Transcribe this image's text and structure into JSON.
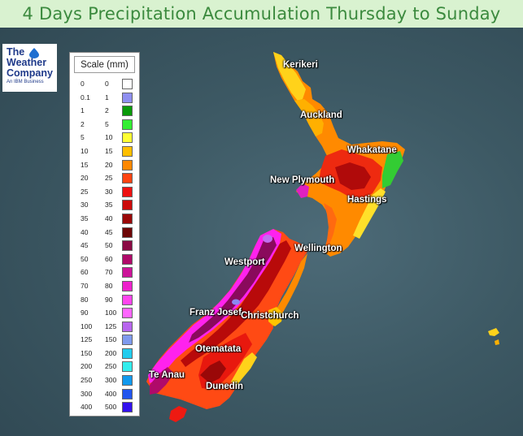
{
  "title": "4 Days Precipitation Accumulation Thursday to Sunday",
  "logo": {
    "line1": "The",
    "line2": "Weather",
    "line3": "Company",
    "line4": "An IBM Business",
    "icon": "water-drop-icon",
    "color": "#1f3a8a"
  },
  "legend": {
    "title": "Scale (mm)",
    "rows": [
      {
        "from": "0",
        "to": "0",
        "color": "#ffffff"
      },
      {
        "from": "0.1",
        "to": "1",
        "color": "#8f8ff0"
      },
      {
        "from": "1",
        "to": "2",
        "color": "#0a9a0a"
      },
      {
        "from": "2",
        "to": "5",
        "color": "#33ee33"
      },
      {
        "from": "5",
        "to": "10",
        "color": "#ffff33"
      },
      {
        "from": "10",
        "to": "15",
        "color": "#ffbf00"
      },
      {
        "from": "15",
        "to": "20",
        "color": "#ff8800"
      },
      {
        "from": "20",
        "to": "25",
        "color": "#ff4411"
      },
      {
        "from": "25",
        "to": "30",
        "color": "#ee1111"
      },
      {
        "from": "30",
        "to": "35",
        "color": "#cc0a0a"
      },
      {
        "from": "35",
        "to": "40",
        "color": "#9a0808"
      },
      {
        "from": "40",
        "to": "45",
        "color": "#6e0606"
      },
      {
        "from": "45",
        "to": "50",
        "color": "#8a0a44"
      },
      {
        "from": "50",
        "to": "60",
        "color": "#b00a6a"
      },
      {
        "from": "60",
        "to": "70",
        "color": "#cc1499"
      },
      {
        "from": "70",
        "to": "80",
        "color": "#ee22cc"
      },
      {
        "from": "80",
        "to": "90",
        "color": "#ff44ee"
      },
      {
        "from": "90",
        "to": "100",
        "color": "#ff66ff"
      },
      {
        "from": "100",
        "to": "125",
        "color": "#b866ee"
      },
      {
        "from": "125",
        "to": "150",
        "color": "#7f9aee"
      },
      {
        "from": "150",
        "to": "200",
        "color": "#22ccee"
      },
      {
        "from": "200",
        "to": "250",
        "color": "#33eeee"
      },
      {
        "from": "250",
        "to": "300",
        "color": "#1199ee"
      },
      {
        "from": "300",
        "to": "400",
        "color": "#2255ee"
      },
      {
        "from": "400",
        "to": "500",
        "color": "#3311ee"
      }
    ]
  },
  "cities": {
    "kerikeri": "Kerikeri",
    "auckland": "Auckland",
    "whakatane": "Whakatane",
    "new_plymouth": "New Plymouth",
    "hastings": "Hastings",
    "wellington": "Wellington",
    "westport": "Westport",
    "franz_josef": "Franz Josef",
    "christchurch": "Christchurch",
    "otematata": "Otematata",
    "te_anau": "Te Anau",
    "dunedin": "Dunedin"
  }
}
